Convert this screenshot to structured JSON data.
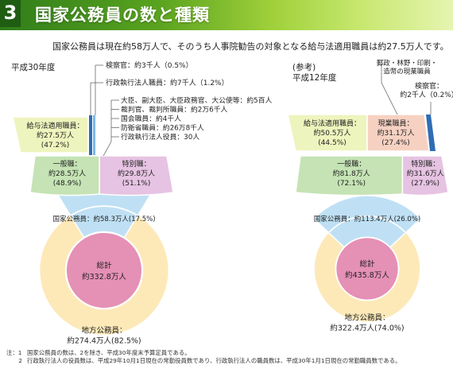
{
  "header": {
    "chapter_number": "3",
    "title": "国家公務員の数と種類"
  },
  "intro_text": "国家公務員は現在約58万人で、そのうち人事院勧告の対象となる給与法適用職員は約27.5万人です。",
  "chart_data": [
    {
      "type": "nested-pie",
      "title": "平成30年度",
      "center": {
        "label": "総計",
        "value_text": "約332.8万人",
        "value": 332.8
      },
      "inner_ring": [
        {
          "name": "国家公務員",
          "value": 58.3,
          "label": "国家公務員：約58.3万人(17.5%)",
          "color": "#bfe0f4"
        },
        {
          "name": "地方公務員",
          "value": 274.4,
          "label_top": "地方公務員：",
          "label_bottom": "約274.4万人(82.5%)",
          "color": "#fde9b8"
        }
      ],
      "middle_ring": [
        {
          "name": "一般職",
          "label_lines": [
            "一般職：",
            "約28.5万人",
            "(48.9%)"
          ],
          "value": 28.5,
          "color": "#c5e3b4"
        },
        {
          "name": "特別職",
          "label_lines": [
            "特別職：",
            "約29.8万人",
            "(51.1%)"
          ],
          "value": 29.8,
          "color": "#e6c3e2"
        }
      ],
      "outer_ring": [
        {
          "name": "給与法適用職員",
          "label_lines": [
            "給与法適用職員：",
            "約27.5万人",
            "(47.2%)"
          ],
          "value": 27.5,
          "color": "#eef4bd"
        },
        {
          "name": "行政執行法人職員",
          "label": "行政執行法人職員：約7千人（1.2%）",
          "value": 0.7,
          "color": "#2f6db3"
        },
        {
          "name": "検察官",
          "label": "検察官：約3千人（0.5%）",
          "value": 0.3,
          "color": "#7ab8e4"
        }
      ],
      "special_breakdown": [
        "大臣、副大臣、大臣政務官、大公使等：約5百人",
        "裁判官、裁判所職員：約2万6千人",
        "国会職員：約4千人",
        "防衛省職員：約26万8千人",
        "行政執行法人役員：30人"
      ]
    },
    {
      "type": "nested-pie",
      "title": "(参考)",
      "subtitle": "平成12年度",
      "center": {
        "label": "総計",
        "value_text": "約435.8万人",
        "value": 435.8
      },
      "inner_ring": [
        {
          "name": "国家公務員",
          "value": 113.4,
          "label": "国家公務員：約113.4万人(26.0%)",
          "color": "#bfe0f4"
        },
        {
          "name": "地方公務員",
          "value": 322.4,
          "label_top": "地方公務員：",
          "label_bottom": "約322.4万人(74.0%)",
          "color": "#fde9b8"
        }
      ],
      "middle_ring": [
        {
          "name": "一般職",
          "label_lines": [
            "一般職：",
            "約81.8万人",
            "(72.1%)"
          ],
          "value": 81.8,
          "color": "#c5e3b4"
        },
        {
          "name": "特別職",
          "label_lines": [
            "特別職：",
            "約31.6万人",
            "(27.9%)"
          ],
          "value": 31.6,
          "color": "#e6c3e2"
        }
      ],
      "outer_ring": [
        {
          "name": "給与法適用職員",
          "label_lines": [
            "給与法適用職員：",
            "約50.5万人",
            "(44.5%)"
          ],
          "value": 50.5,
          "color": "#eef4bd"
        },
        {
          "name": "現業職員",
          "label_lines": [
            "現業職員：",
            "約31.1万人",
            "(27.4%)"
          ],
          "value": 31.1,
          "color": "#f6d1c2"
        },
        {
          "name": "検察官",
          "label_lines": [
            "検察官：",
            "約2千人（0.2%）"
          ],
          "value": 0.2,
          "color": "#2f6db3"
        }
      ],
      "annotation_lines": [
        "郵政・林野・印刷・",
        "造幣の現業職員"
      ]
    }
  ],
  "footnotes": [
    {
      "label": "注：1",
      "text": "国家公務員の数は、2を除き、平成30年度末予算定員である。"
    },
    {
      "label": "2",
      "text": "行政執行法人の役員数は、平成29年10月1日現在の常勤役員数であり、行政執行法人の職員数は、平成30年1月1日現在の常勤職員数である。"
    }
  ]
}
